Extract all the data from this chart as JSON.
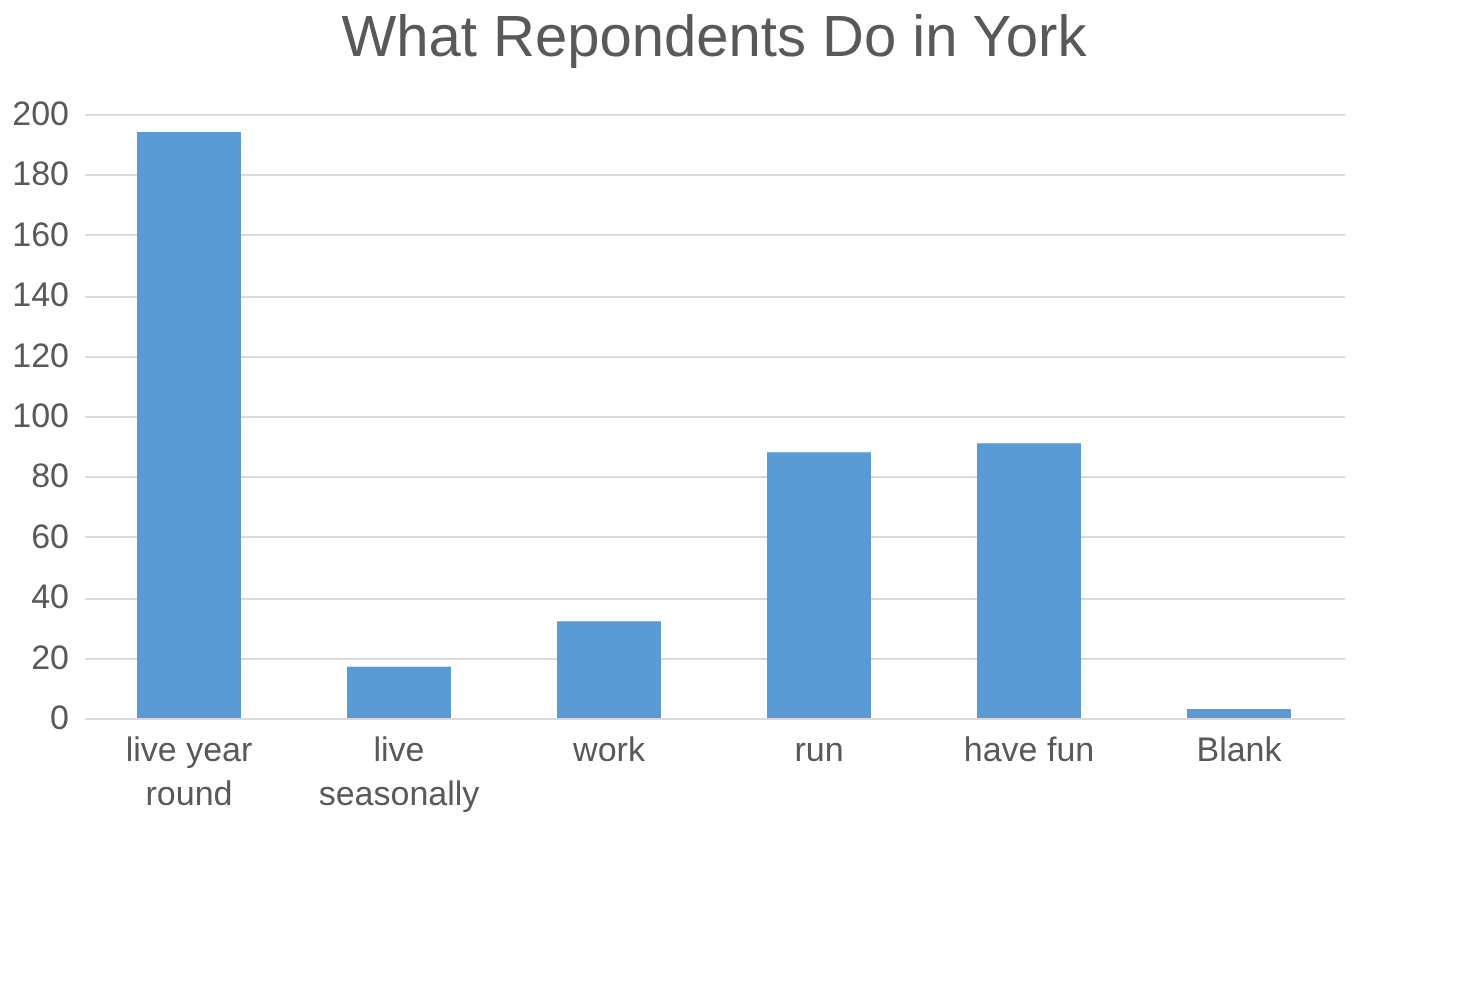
{
  "chart_data": {
    "type": "bar",
    "title": "What Repondents  Do in York",
    "categories": [
      "live year round",
      "live seasonally",
      "work",
      "run",
      "have fun",
      "Blank"
    ],
    "values": [
      194,
      17,
      32,
      88,
      91,
      3
    ],
    "color": "#5b9bd5",
    "ylim": [
      0,
      200
    ],
    "yticks": [
      0,
      20,
      40,
      60,
      80,
      100,
      120,
      140,
      160,
      180,
      200
    ],
    "grid": "y"
  }
}
